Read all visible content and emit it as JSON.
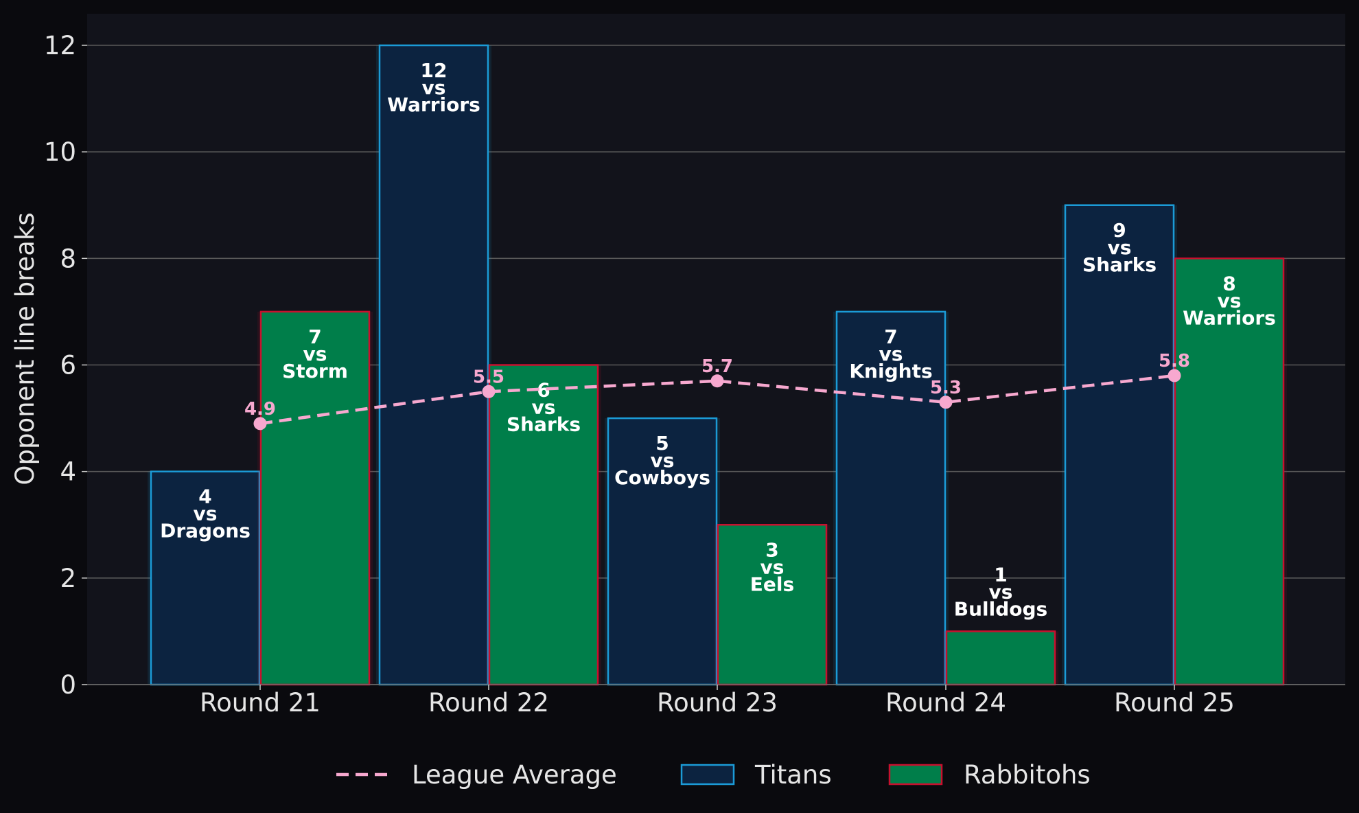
{
  "chart_data": {
    "type": "bar",
    "ylabel": "Opponent line breaks",
    "xlabel": "",
    "ylim": [
      0,
      12.6
    ],
    "yticks": [
      0,
      2,
      4,
      6,
      8,
      10,
      12
    ],
    "grid": true,
    "legend_position": "bottom-center",
    "categories": [
      "Round 21",
      "Round 22",
      "Round 23",
      "Round 24",
      "Round 25"
    ],
    "series": [
      {
        "name": "Titans",
        "values": [
          4,
          12,
          5,
          7,
          9
        ],
        "opponents": [
          "Dragons",
          "Warriors",
          "Cowboys",
          "Knights",
          "Sharks"
        ],
        "fill": "#0c2340",
        "edge": "#1b9bd7"
      },
      {
        "name": "Rabbitohs",
        "values": [
          7,
          6,
          3,
          1,
          8
        ],
        "opponents": [
          "Storm",
          "Sharks",
          "Eels",
          "Bulldogs",
          "Warriors"
        ],
        "fill": "#007e4a",
        "edge": "#c8102e"
      }
    ],
    "average_line": {
      "name": "League Average",
      "values": [
        4.9,
        5.5,
        5.7,
        5.3,
        5.8
      ],
      "color": "#f7a8cf"
    },
    "vs_text": "vs"
  }
}
